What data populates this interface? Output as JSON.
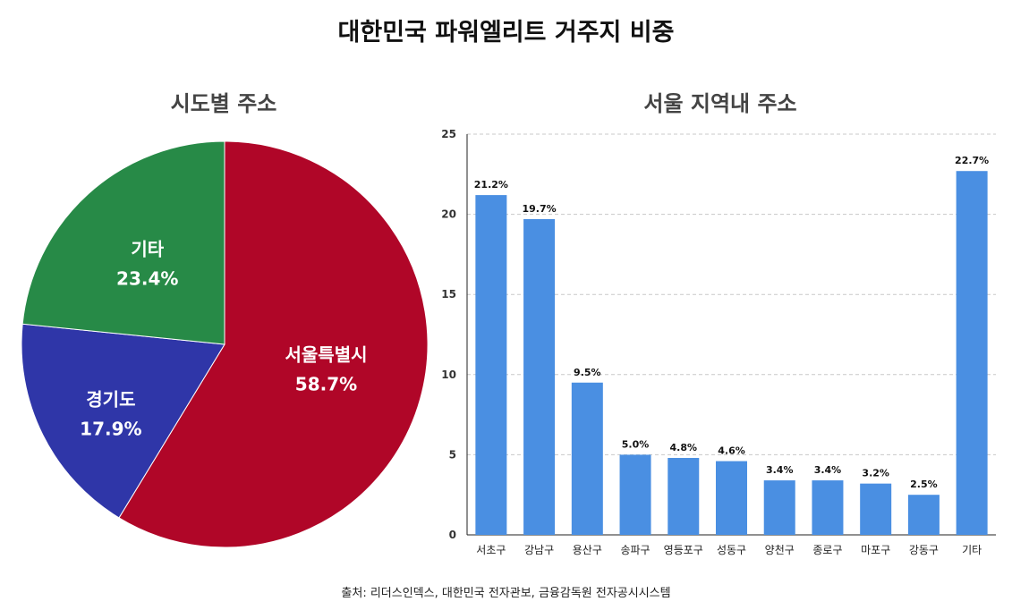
{
  "title": "대한민국 파워엘리트 거주지 비중",
  "source": "출처: 리더스인덱스, 대한민국 전자관보, 금융감독원 전자공시시스템",
  "chart_data": [
    {
      "type": "pie",
      "title": "시도별 주소",
      "slices": [
        {
          "label": "서울특별시",
          "value": 58.7,
          "display": "58.7%",
          "color": "#b00628"
        },
        {
          "label": "경기도",
          "value": 17.9,
          "display": "17.9%",
          "color": "#2f36a8"
        },
        {
          "label": "기타",
          "value": 23.4,
          "display": "23.4%",
          "color": "#278a47"
        }
      ]
    },
    {
      "type": "bar",
      "title": "서울 지역내 주소",
      "categories": [
        "서초구",
        "강남구",
        "용산구",
        "송파구",
        "영등포구",
        "성동구",
        "양천구",
        "종로구",
        "마포구",
        "강동구",
        "기타"
      ],
      "values": [
        21.2,
        19.7,
        9.5,
        5.0,
        4.8,
        4.6,
        3.4,
        3.4,
        3.2,
        2.5,
        22.7
      ],
      "value_labels": [
        "21.2%",
        "19.7%",
        "9.5%",
        "5.0%",
        "4.8%",
        "4.6%",
        "3.4%",
        "3.4%",
        "3.2%",
        "2.5%",
        "22.7%"
      ],
      "yticks": [
        0,
        5,
        10,
        15,
        20,
        25
      ],
      "ylim": [
        0,
        25
      ],
      "grid": true,
      "color": "#4a8fe2"
    }
  ]
}
